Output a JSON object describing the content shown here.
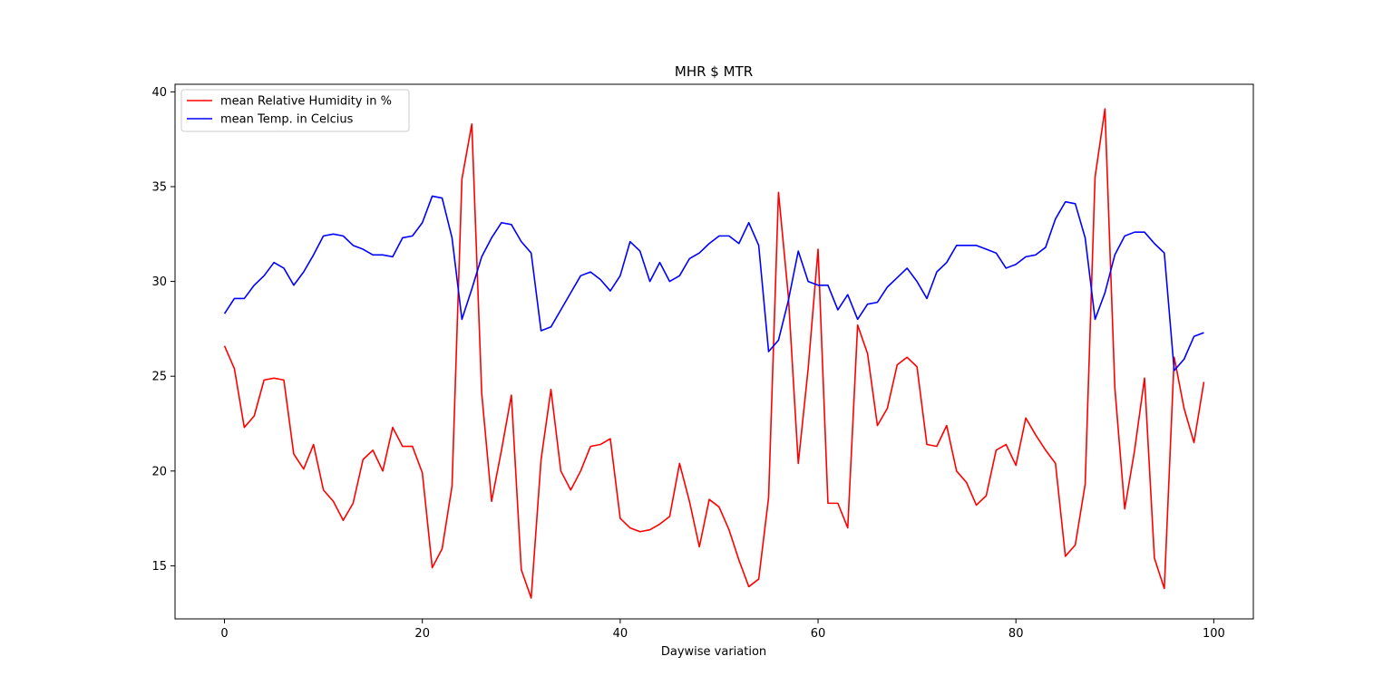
{
  "chart_data": {
    "type": "line",
    "title": "MHR $ MTR",
    "xlabel": "Daywise variation",
    "ylabel": "",
    "xlim": [
      -5,
      104
    ],
    "ylim": [
      12.2,
      40.4
    ],
    "xticks": [
      0,
      20,
      40,
      60,
      80,
      100
    ],
    "yticks": [
      15,
      20,
      25,
      30,
      35,
      40
    ],
    "grid": false,
    "legend_position": "top-left",
    "series": [
      {
        "name": "mean Relative Humidity in %",
        "color": "#ff0000",
        "x": [
          0,
          1,
          2,
          3,
          4,
          5,
          6,
          7,
          8,
          9,
          10,
          11,
          12,
          13,
          14,
          15,
          16,
          17,
          18,
          19,
          20,
          21,
          22,
          23,
          24,
          25,
          26,
          27,
          28,
          29,
          30,
          31,
          32,
          33,
          34,
          35,
          36,
          37,
          38,
          39,
          40,
          41,
          42,
          43,
          44,
          45,
          46,
          47,
          48,
          49,
          50,
          51,
          52,
          53,
          54,
          55,
          56,
          57,
          58,
          59,
          60,
          61,
          62,
          63,
          64,
          65,
          66,
          67,
          68,
          69,
          70,
          71,
          72,
          73,
          74,
          75,
          76,
          77,
          78,
          79,
          80,
          81,
          82,
          83,
          84,
          85,
          86,
          87,
          88,
          89,
          90,
          91,
          92,
          93,
          94,
          95,
          96,
          97,
          98,
          99
        ],
        "values": [
          26.6,
          25.4,
          22.3,
          22.9,
          24.8,
          24.9,
          24.8,
          20.9,
          20.1,
          21.4,
          19.0,
          18.4,
          17.4,
          18.3,
          20.6,
          21.1,
          20.0,
          22.3,
          21.3,
          21.3,
          19.9,
          14.9,
          15.9,
          19.2,
          35.4,
          38.3,
          24.1,
          18.4,
          21.1,
          24.0,
          14.8,
          13.3,
          20.6,
          24.3,
          20.0,
          19.0,
          20.0,
          21.3,
          21.4,
          21.7,
          17.5,
          17.0,
          16.8,
          16.9,
          17.2,
          17.6,
          20.4,
          18.4,
          16.0,
          18.5,
          18.1,
          16.9,
          15.3,
          13.9,
          14.3,
          18.6,
          34.7,
          29.2,
          20.4,
          25.4,
          31.7,
          18.3,
          18.3,
          17.0,
          27.7,
          26.2,
          22.4,
          23.3,
          25.6,
          26.0,
          25.5,
          21.4,
          21.3,
          22.4,
          20.0,
          19.4,
          18.2,
          18.7,
          21.1,
          21.4,
          20.3,
          22.8,
          21.9,
          21.1,
          20.4,
          15.5,
          16.1,
          19.3,
          35.5,
          39.1,
          24.4,
          18.0,
          21.1,
          24.9,
          15.4,
          13.8,
          26.0,
          23.3,
          21.5,
          24.7
        ]
      },
      {
        "name": "mean Temp. in Celcius",
        "color": "#0000ff",
        "x": [
          0,
          1,
          2,
          3,
          4,
          5,
          6,
          7,
          8,
          9,
          10,
          11,
          12,
          13,
          14,
          15,
          16,
          17,
          18,
          19,
          20,
          21,
          22,
          23,
          24,
          25,
          26,
          27,
          28,
          29,
          30,
          31,
          32,
          33,
          34,
          35,
          36,
          37,
          38,
          39,
          40,
          41,
          42,
          43,
          44,
          45,
          46,
          47,
          48,
          49,
          50,
          51,
          52,
          53,
          54,
          55,
          56,
          57,
          58,
          59,
          60,
          61,
          62,
          63,
          64,
          65,
          66,
          67,
          68,
          69,
          70,
          71,
          72,
          73,
          74,
          75,
          76,
          77,
          78,
          79,
          80,
          81,
          82,
          83,
          84,
          85,
          86,
          87,
          88,
          89,
          90,
          91,
          92,
          93,
          94,
          95,
          96,
          97,
          98,
          99
        ],
        "values": [
          28.3,
          29.1,
          29.1,
          29.8,
          30.3,
          31.0,
          30.7,
          29.8,
          30.5,
          31.4,
          32.4,
          32.5,
          32.4,
          31.9,
          31.7,
          31.4,
          31.4,
          31.3,
          32.3,
          32.4,
          33.1,
          34.5,
          34.4,
          32.3,
          28.0,
          29.6,
          31.3,
          32.3,
          33.1,
          33.0,
          32.1,
          31.5,
          27.4,
          27.6,
          28.5,
          29.4,
          30.3,
          30.5,
          30.1,
          29.5,
          30.3,
          32.1,
          31.6,
          30.0,
          31.0,
          30.0,
          30.3,
          31.2,
          31.5,
          32.0,
          32.4,
          32.4,
          32.0,
          33.1,
          31.9,
          26.3,
          26.9,
          29.0,
          31.6,
          30.0,
          29.8,
          29.8,
          28.5,
          29.3,
          28.0,
          28.8,
          28.9,
          29.7,
          30.2,
          30.7,
          30.0,
          29.1,
          30.5,
          31.0,
          31.9,
          31.9,
          31.9,
          31.7,
          31.5,
          30.7,
          30.9,
          31.3,
          31.4,
          31.8,
          33.3,
          34.2,
          34.1,
          32.3,
          28.0,
          29.4,
          31.4,
          32.4,
          32.6,
          32.6,
          32.0,
          31.5,
          25.3,
          25.9,
          27.1,
          27.3
        ]
      }
    ]
  }
}
